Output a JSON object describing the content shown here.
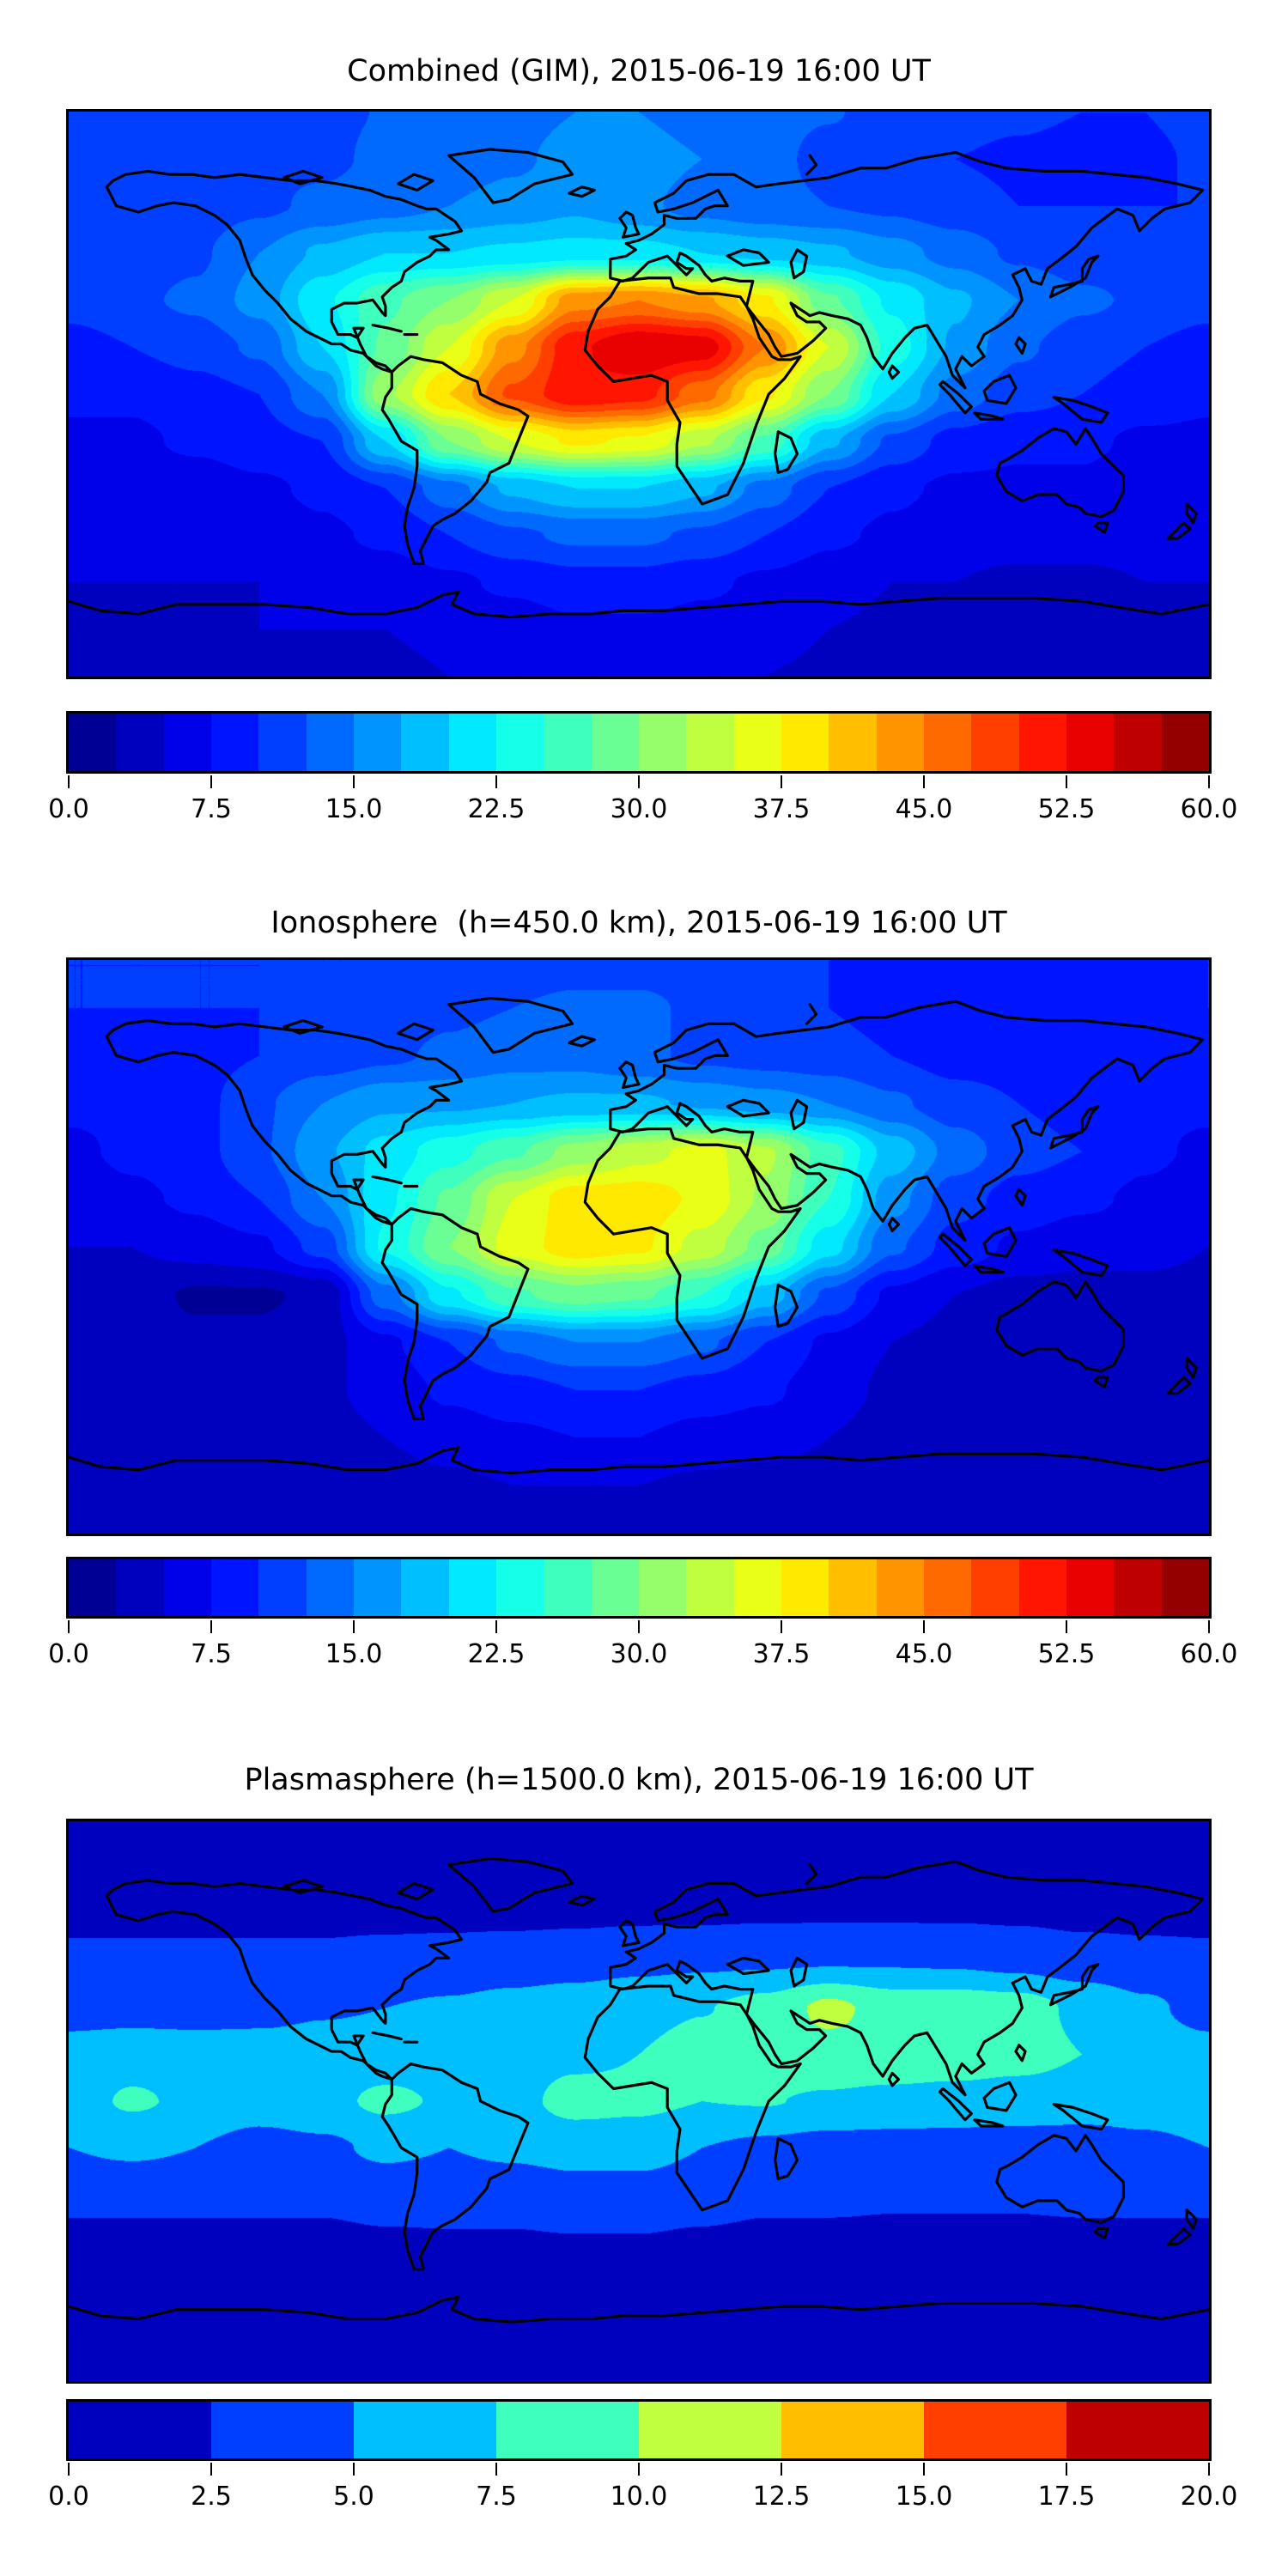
{
  "figure": {
    "background": "#FFFFFF",
    "coastline_color": "#000000",
    "frame_color": "#000000"
  },
  "colors": {
    "jet_stops": [
      [
        0.0,
        "#00007F"
      ],
      [
        0.125,
        "#0000FF"
      ],
      [
        0.375,
        "#00FFFF"
      ],
      [
        0.625,
        "#FFFF00"
      ],
      [
        0.875,
        "#FF0000"
      ],
      [
        1.0,
        "#7F0000"
      ]
    ]
  },
  "chart_data": [
    {
      "type": "heatmap",
      "title": "Combined (GIM), 2015-06-19 16:00 UT",
      "projection": "equirectangular",
      "colormap": "jet",
      "grid_off": true,
      "legend_position": "colorbar-below",
      "levels": {
        "min": 0,
        "max": 60,
        "step": 2.5
      },
      "colorbar_ticks": [
        "0.0",
        "7.5",
        "15.0",
        "22.5",
        "30.0",
        "37.5",
        "45.0",
        "52.5",
        "60.0"
      ],
      "x": {
        "label": "",
        "range": [
          -180,
          180
        ]
      },
      "y": {
        "label": "",
        "range": [
          -90,
          90
        ]
      },
      "grid": {
        "lons": [
          -180,
          -160,
          -140,
          -120,
          -100,
          -80,
          -60,
          -40,
          -20,
          0,
          20,
          40,
          60,
          80,
          100,
          120,
          140,
          160,
          180
        ],
        "lats": [
          90,
          75,
          60,
          45,
          30,
          15,
          0,
          -15,
          -30,
          -45,
          -60,
          -75,
          -90
        ],
        "values": [
          [
            12,
            12,
            12,
            12,
            12,
            12.6,
            13,
            14,
            15,
            15,
            14,
            13,
            12.6,
            12,
            11,
            10.5,
            10,
            10,
            12
          ],
          [
            11,
            11,
            11,
            12,
            12,
            13,
            13.5,
            14.5,
            16,
            16,
            15,
            13,
            12,
            11,
            10,
            9.5,
            9,
            9,
            11
          ],
          [
            10,
            10,
            11,
            12,
            13,
            14,
            15,
            16,
            17,
            15.5,
            14,
            13,
            12.5,
            12,
            11,
            10,
            10,
            10,
            10
          ],
          [
            11,
            11,
            12,
            15,
            18,
            20,
            20,
            20.5,
            21,
            21,
            20,
            19,
            18,
            16,
            14,
            12,
            11,
            11,
            11
          ],
          [
            11,
            12,
            13,
            16,
            22,
            27,
            30,
            35,
            44,
            45,
            43,
            38,
            28,
            22,
            18,
            15,
            13,
            12,
            11
          ],
          [
            9,
            10,
            11,
            13,
            20,
            28,
            35,
            44,
            52,
            55,
            54,
            45,
            35,
            24,
            17,
            13,
            11,
            10,
            9
          ],
          [
            8,
            8,
            9,
            10,
            15,
            32,
            40,
            48,
            52,
            51,
            46,
            38,
            30,
            20,
            14,
            11,
            10,
            9,
            8
          ],
          [
            7,
            7,
            8,
            9,
            10,
            20,
            30,
            35,
            38,
            37,
            33,
            27,
            18,
            12,
            9,
            8,
            8,
            7,
            7
          ],
          [
            6,
            6,
            6,
            7,
            8,
            10,
            14,
            18,
            20,
            20,
            18,
            14,
            10,
            8,
            7,
            7,
            7,
            6,
            6
          ],
          [
            6,
            6,
            6,
            6,
            7,
            8,
            10,
            12,
            13,
            13,
            12,
            10,
            8,
            7,
            6,
            6,
            6,
            6,
            6
          ],
          [
            5,
            5,
            5,
            5,
            6,
            6,
            7,
            8,
            9,
            9,
            8,
            7,
            6,
            5,
            5,
            4.5,
            4.5,
            5,
            5
          ],
          [
            4,
            4,
            4,
            5,
            5,
            5,
            6,
            6,
            7,
            7,
            6.5,
            6,
            5,
            4.5,
            4,
            4,
            4,
            4,
            4
          ],
          [
            4,
            4,
            4,
            4,
            4,
            4,
            5,
            5,
            5,
            5,
            5,
            5,
            4.5,
            4,
            4,
            4,
            4,
            4,
            4
          ]
        ]
      }
    },
    {
      "type": "heatmap",
      "title": "Ionosphere  (h=450.0 km), 2015-06-19 16:00 UT",
      "projection": "equirectangular",
      "colormap": "jet",
      "grid_off": true,
      "legend_position": "colorbar-below",
      "levels": {
        "min": 0,
        "max": 60,
        "step": 2.5
      },
      "colorbar_ticks": [
        "0.0",
        "7.5",
        "15.0",
        "22.5",
        "30.0",
        "37.5",
        "45.0",
        "52.5",
        "60.0"
      ],
      "x": {
        "label": "",
        "range": [
          -180,
          180
        ]
      },
      "y": {
        "label": "",
        "range": [
          -90,
          90
        ]
      },
      "grid": {
        "lons": [
          -180,
          -160,
          -140,
          -120,
          -100,
          -80,
          -60,
          -40,
          -20,
          0,
          20,
          40,
          60,
          80,
          100,
          120,
          140,
          160,
          180
        ],
        "lats": [
          90,
          75,
          60,
          45,
          30,
          15,
          0,
          -15,
          -30,
          -45,
          -60,
          -75,
          -90
        ],
        "values": [
          [
            10,
            10,
            10,
            10,
            10,
            10,
            10.5,
            11,
            11.5,
            11.5,
            11,
            10.5,
            10,
            9.5,
            9,
            8.5,
            8,
            8,
            10
          ],
          [
            10,
            10,
            10,
            10,
            11,
            11,
            12,
            12.5,
            13,
            13,
            12,
            11,
            10,
            9,
            9,
            8.5,
            8,
            8,
            10
          ],
          [
            9,
            9,
            9,
            10,
            11,
            12,
            13,
            14,
            14,
            13,
            12,
            11.5,
            11,
            10,
            9,
            9,
            8.5,
            8.5,
            9
          ],
          [
            8,
            8,
            9,
            12,
            15,
            17,
            17,
            17.5,
            18,
            18,
            17,
            16,
            15,
            13,
            11,
            10,
            9,
            8,
            8
          ],
          [
            7,
            8,
            9,
            12,
            17,
            21,
            24,
            27,
            31,
            34,
            36,
            33,
            26,
            19,
            14,
            11,
            10,
            8,
            7
          ],
          [
            6,
            7,
            8,
            10,
            15,
            22,
            28,
            35,
            39,
            39,
            37,
            32,
            25,
            16,
            11,
            9,
            8,
            7,
            6
          ],
          [
            5,
            5,
            6,
            7,
            11,
            23,
            30,
            36,
            39,
            38,
            34,
            29,
            21,
            13,
            9,
            7,
            6,
            6,
            5
          ],
          [
            4,
            3.5,
            2.2,
            2.2,
            3,
            14,
            22,
            27,
            29,
            28,
            25,
            19,
            12,
            7,
            5,
            4,
            4,
            4,
            4
          ],
          [
            3,
            3,
            3,
            3,
            4,
            7,
            10,
            13,
            15,
            15,
            13,
            10,
            7,
            5,
            4,
            3.5,
            3.5,
            3,
            3
          ],
          [
            3,
            3,
            3,
            3.5,
            4.5,
            6,
            8,
            9,
            10,
            10,
            9,
            8,
            6,
            4.5,
            4,
            3.5,
            3.5,
            3,
            3
          ],
          [
            3,
            3,
            3,
            3.5,
            4,
            5,
            6,
            7,
            7.5,
            7.5,
            6.5,
            6,
            5,
            4,
            3.5,
            3,
            3,
            3,
            3
          ],
          [
            3,
            3,
            3,
            3,
            3.5,
            4,
            4.5,
            5,
            5,
            5,
            4.5,
            4,
            4,
            3.5,
            3,
            3,
            3,
            3,
            3
          ],
          [
            3,
            3,
            3,
            3,
            3,
            3,
            4,
            4,
            4,
            4,
            4,
            3.5,
            3.5,
            3,
            3,
            3,
            3,
            3,
            3
          ]
        ]
      }
    },
    {
      "type": "heatmap",
      "title": "Plasmasphere (h=1500.0 km), 2015-06-19 16:00 UT",
      "projection": "equirectangular",
      "colormap": "jet",
      "grid_off": true,
      "legend_position": "colorbar-below",
      "levels": {
        "min": 0,
        "max": 20,
        "step": 2.5
      },
      "colorbar_ticks": [
        "0.0",
        "2.5",
        "5.0",
        "7.5",
        "10.0",
        "12.5",
        "15.0",
        "17.5",
        "20.0"
      ],
      "x": {
        "label": "",
        "range": [
          -180,
          180
        ]
      },
      "y": {
        "label": "",
        "range": [
          -90,
          90
        ]
      },
      "grid": {
        "lons": [
          -180,
          -160,
          -140,
          -120,
          -100,
          -80,
          -60,
          -40,
          -20,
          0,
          20,
          40,
          60,
          80,
          100,
          120,
          140,
          160,
          180
        ],
        "lats": [
          90,
          75,
          60,
          45,
          30,
          15,
          0,
          -15,
          -30,
          -45,
          -60,
          -75,
          -90
        ],
        "values": [
          [
            1.8,
            1.8,
            1.8,
            1.8,
            1.8,
            1.8,
            1.8,
            1.8,
            1.8,
            1.8,
            1.8,
            1.8,
            1.8,
            1.8,
            1.8,
            1.8,
            1.8,
            1.8,
            1.8
          ],
          [
            1.8,
            1.8,
            1.8,
            1.8,
            1.8,
            1.8,
            1.8,
            1.8,
            1.8,
            1.8,
            1.8,
            1.8,
            1.8,
            1.8,
            1.8,
            1.8,
            1.8,
            1.8,
            1.8
          ],
          [
            2,
            2,
            2,
            2,
            2,
            2,
            2,
            2,
            2.1,
            2.2,
            2.2,
            2.3,
            2.3,
            2.3,
            2.3,
            2.2,
            2,
            2,
            2
          ],
          [
            3,
            3,
            3,
            3,
            3,
            3.3,
            3.5,
            3.8,
            4,
            4.4,
            4.6,
            4.7,
            4.8,
            4.8,
            4.7,
            4.3,
            3.6,
            3.2,
            3
          ],
          [
            4,
            4,
            4,
            4.3,
            4.8,
            5,
            5.3,
            5.8,
            6.3,
            6.8,
            7.4,
            8.4,
            10.6,
            9,
            9,
            8.6,
            7,
            5.5,
            4
          ],
          [
            6,
            6.5,
            6.2,
            6,
            6,
            6.2,
            6.2,
            6.5,
            7,
            7.5,
            8.5,
            9,
            9.2,
            9.2,
            9,
            8.5,
            7.5,
            6.5,
            6
          ],
          [
            6.5,
            7.8,
            7,
            6.3,
            6.8,
            8,
            7.2,
            6.8,
            8.3,
            8,
            7.5,
            7.6,
            7.2,
            6.8,
            6.5,
            6.2,
            6,
            6,
            6.5
          ],
          [
            5,
            5.5,
            5,
            4,
            4.5,
            5.5,
            5,
            5.5,
            6,
            6,
            5,
            4.5,
            4,
            4,
            4,
            4,
            4,
            4.5,
            5
          ],
          [
            3,
            3,
            3,
            3,
            3,
            3.5,
            3.5,
            3.5,
            4,
            4,
            3.5,
            3,
            3,
            2.8,
            2.8,
            2.8,
            3,
            3,
            3
          ],
          [
            2,
            2,
            2,
            2,
            2,
            2.2,
            2.3,
            2.3,
            2.4,
            2.4,
            2.2,
            2,
            2,
            2,
            2,
            2,
            2,
            2,
            2
          ],
          [
            1.8,
            1.8,
            1.8,
            1.8,
            1.8,
            1.8,
            1.8,
            1.8,
            1.8,
            1.8,
            1.8,
            1.8,
            1.8,
            1.8,
            1.8,
            1.8,
            1.8,
            1.8,
            1.8
          ],
          [
            1.8,
            1.8,
            1.8,
            1.8,
            1.8,
            1.8,
            1.8,
            1.8,
            1.8,
            1.8,
            1.8,
            1.8,
            1.8,
            1.8,
            1.8,
            1.8,
            1.8,
            1.8,
            1.8
          ],
          [
            1.8,
            1.8,
            1.8,
            1.8,
            1.8,
            1.8,
            1.8,
            1.8,
            1.8,
            1.8,
            1.8,
            1.8,
            1.8,
            1.8,
            1.8,
            1.8,
            1.8,
            1.8,
            1.8
          ]
        ]
      }
    }
  ]
}
